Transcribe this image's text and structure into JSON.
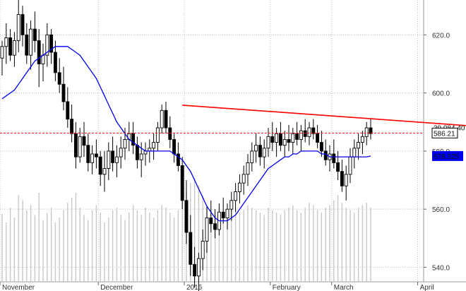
{
  "chart_data": {
    "type": "candlestick",
    "title": "",
    "y_axis": {
      "side": "right",
      "range": [
        535,
        632
      ],
      "ticks": [
        540,
        560,
        580,
        600,
        620
      ],
      "tick_labels": [
        "540.0",
        "560.0",
        "580.0",
        "600.0",
        "620.0"
      ]
    },
    "x_axis": {
      "month_labels": [
        "November",
        "December",
        "2016",
        "February",
        "March",
        "April"
      ],
      "month_start_bar": [
        0,
        24,
        45,
        66,
        81,
        102
      ]
    },
    "grid": "vertical and horizontal dotted",
    "annotations": {
      "last_price_label": "586.21",
      "volume_label": "39,084,40",
      "ma_label": "578.325",
      "last_price_line_value": 586.21,
      "trendline": {
        "from": {
          "bar": 44,
          "value": 595.8
        },
        "to": {
          "bar": 118,
          "value": 588.3
        }
      }
    },
    "colors": {
      "moving_average": "#0000ee",
      "trendline": "#ff0000",
      "price_line": "#ff0000",
      "ma_label_bg": "#0000ee",
      "volume": "#c8c8c8"
    },
    "series": [
      {
        "kind": "ohlc",
        "data": [
          [
            612,
            618,
            606,
            616
          ],
          [
            616,
            624,
            610,
            619
          ],
          [
            619,
            622,
            611,
            613
          ],
          [
            613,
            621,
            609,
            618
          ],
          [
            618,
            632,
            614,
            627
          ],
          [
            627,
            630,
            616,
            620
          ],
          [
            620,
            624,
            610,
            613
          ],
          [
            613,
            625,
            608,
            622
          ],
          [
            622,
            628,
            614,
            618
          ],
          [
            618,
            622,
            602,
            610
          ],
          [
            610,
            617,
            604,
            613
          ],
          [
            613,
            624,
            609,
            620
          ],
          [
            620,
            622,
            610,
            614
          ],
          [
            614,
            618,
            604,
            607
          ],
          [
            607,
            612,
            600,
            603
          ],
          [
            603,
            609,
            594,
            597
          ],
          [
            597,
            602,
            588,
            591
          ],
          [
            591,
            596,
            583,
            586
          ],
          [
            586,
            590,
            574,
            578
          ],
          [
            578,
            588,
            576,
            585
          ],
          [
            585,
            590,
            578,
            582
          ],
          [
            582,
            586,
            573,
            576
          ],
          [
            576,
            582,
            572,
            579
          ],
          [
            579,
            584,
            574,
            578
          ],
          [
            578,
            580,
            568,
            572
          ],
          [
            572,
            580,
            566,
            574
          ],
          [
            574,
            583,
            570,
            580
          ],
          [
            580,
            585,
            573,
            576
          ],
          [
            576,
            582,
            571,
            578
          ],
          [
            578,
            585,
            574,
            581
          ],
          [
            581,
            588,
            577,
            584
          ],
          [
            584,
            590,
            580,
            586
          ],
          [
            586,
            590,
            579,
            582
          ],
          [
            582,
            585,
            574,
            577
          ],
          [
            577,
            583,
            571,
            579
          ],
          [
            579,
            583,
            575,
            580
          ],
          [
            580,
            584,
            576,
            581
          ],
          [
            581,
            586,
            577,
            583
          ],
          [
            583,
            590,
            580,
            588
          ],
          [
            588,
            596,
            586,
            594
          ],
          [
            594,
            597,
            586,
            588
          ],
          [
            588,
            592,
            581,
            584
          ],
          [
            584,
            586,
            576,
            579
          ],
          [
            579,
            583,
            573,
            575
          ],
          [
            575,
            578,
            560,
            563
          ],
          [
            563,
            570,
            548,
            552
          ],
          [
            552,
            558,
            537,
            541
          ],
          [
            541,
            547,
            533,
            537
          ],
          [
            537,
            545,
            531,
            543
          ],
          [
            543,
            553,
            539,
            549
          ],
          [
            549,
            561,
            545,
            557
          ],
          [
            557,
            563,
            552,
            555
          ],
          [
            555,
            560,
            550,
            553
          ],
          [
            553,
            562,
            551,
            559
          ],
          [
            559,
            564,
            555,
            557
          ],
          [
            557,
            562,
            553,
            560
          ],
          [
            560,
            566,
            556,
            563
          ],
          [
            563,
            569,
            559,
            566
          ],
          [
            566,
            572,
            562,
            569
          ],
          [
            569,
            575,
            565,
            572
          ],
          [
            572,
            579,
            568,
            576
          ],
          [
            576,
            583,
            573,
            580
          ],
          [
            580,
            586,
            576,
            582
          ],
          [
            582,
            585,
            575,
            578
          ],
          [
            578,
            584,
            574,
            581
          ],
          [
            581,
            588,
            578,
            585
          ],
          [
            585,
            590,
            580,
            583
          ],
          [
            583,
            588,
            578,
            586
          ],
          [
            586,
            590,
            580,
            582
          ],
          [
            582,
            587,
            578,
            584
          ],
          [
            584,
            589,
            580,
            583
          ],
          [
            583,
            588,
            579,
            586
          ],
          [
            586,
            590,
            582,
            584
          ],
          [
            584,
            589,
            580,
            587
          ],
          [
            587,
            591,
            583,
            585
          ],
          [
            585,
            590,
            582,
            588
          ],
          [
            588,
            591,
            584,
            586
          ],
          [
            586,
            589,
            581,
            583
          ],
          [
            583,
            587,
            578,
            580
          ],
          [
            580,
            584,
            575,
            577
          ],
          [
            577,
            582,
            573,
            579
          ],
          [
            579,
            584,
            574,
            576
          ],
          [
            576,
            580,
            570,
            573
          ],
          [
            573,
            577,
            566,
            568
          ],
          [
            568,
            575,
            563,
            572
          ],
          [
            572,
            581,
            569,
            578
          ],
          [
            578,
            584,
            574,
            581
          ],
          [
            581,
            586,
            577,
            583
          ],
          [
            583,
            587,
            579,
            585
          ],
          [
            585,
            590,
            582,
            588
          ],
          [
            588,
            591,
            584,
            586
          ]
        ]
      },
      {
        "kind": "moving_average",
        "values": [
          598,
          599,
          600,
          601,
          603,
          605,
          607,
          609,
          611,
          612,
          613,
          614,
          615,
          616,
          616,
          616,
          616,
          615,
          614,
          613,
          611,
          609,
          607,
          605,
          602,
          599,
          596,
          593,
          590,
          588,
          586,
          584,
          583,
          582,
          581,
          580,
          580,
          580,
          580,
          580,
          580,
          580,
          579,
          578,
          577,
          575,
          573,
          570,
          567,
          564,
          561,
          559,
          557,
          556,
          556,
          556,
          557,
          558,
          560,
          562,
          564,
          566,
          568,
          570,
          572,
          574,
          575,
          576,
          577,
          578,
          578,
          579,
          579,
          580,
          580,
          580,
          580,
          580,
          579,
          579,
          578,
          578,
          578,
          578,
          578,
          578,
          578,
          578,
          578,
          578,
          578.3
        ]
      },
      {
        "kind": "volume",
        "values": [
          55,
          48,
          60,
          52,
          70,
          66,
          58,
          62,
          54,
          72,
          50,
          56,
          60,
          48,
          52,
          58,
          64,
          68,
          72,
          60,
          54,
          50,
          58,
          62,
          56,
          48,
          52,
          58,
          60,
          54,
          50,
          56,
          62,
          58,
          54,
          60,
          56,
          52,
          58,
          62,
          60,
          56,
          52,
          58,
          66,
          74,
          80,
          84,
          78,
          70,
          62,
          58,
          56,
          60,
          54,
          58,
          62,
          60,
          56,
          58,
          62,
          60,
          58,
          56,
          54,
          60,
          58,
          56,
          54,
          58,
          60,
          62,
          58,
          56,
          60,
          64,
          62,
          58,
          56,
          60,
          62,
          66,
          70,
          64,
          60,
          58,
          56,
          60,
          62,
          64,
          60
        ]
      }
    ]
  }
}
